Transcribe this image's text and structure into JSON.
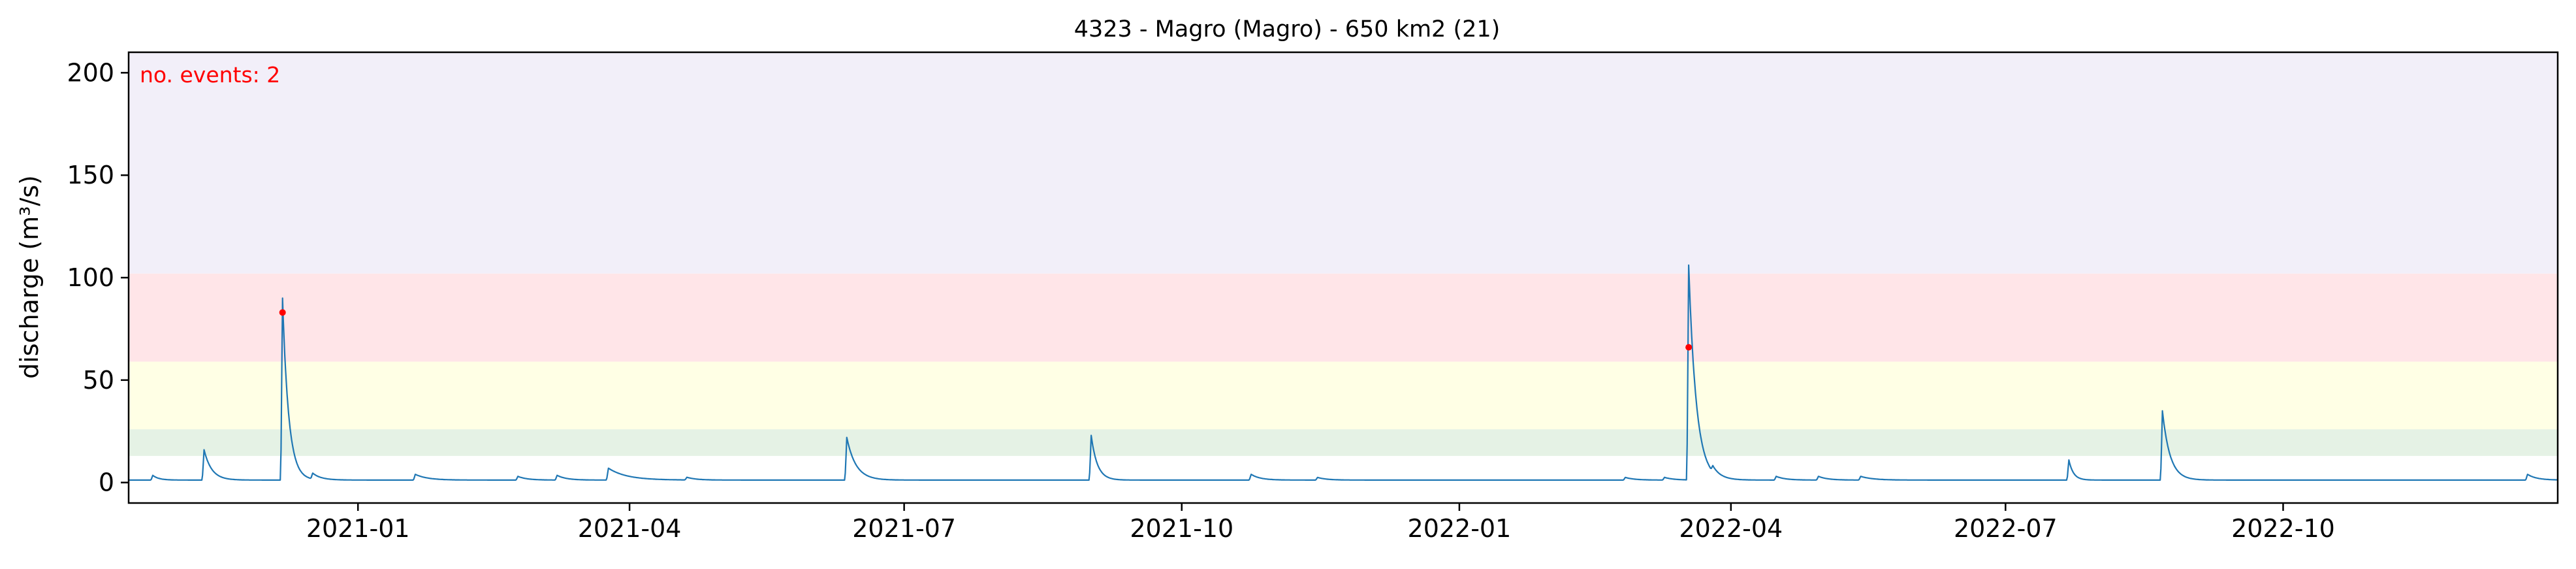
{
  "chart_data": {
    "type": "line",
    "title": "4323 - Magro (Magro) - 650 km2 (21)",
    "xlabel": "",
    "ylabel": "discharge (m³/s)",
    "annotation": "no. events: 2",
    "xlim": [
      "2020-10-17",
      "2022-12-31"
    ],
    "ylim": [
      -10,
      210
    ],
    "x_ticks": [
      "2021-01-01",
      "2021-04-01",
      "2021-07-01",
      "2021-10-01",
      "2022-01-01",
      "2022-04-01",
      "2022-07-01",
      "2022-10-01"
    ],
    "x_tick_labels": [
      "2021-01",
      "2021-04",
      "2021-07",
      "2021-10",
      "2022-01",
      "2022-04",
      "2022-07",
      "2022-10"
    ],
    "y_ticks": [
      0,
      50,
      100,
      150,
      200
    ],
    "grid": false,
    "bands": [
      {
        "from": 13,
        "to": 26,
        "color": "#e5f2e5"
      },
      {
        "from": 26,
        "to": 59,
        "color": "#ffffe5"
      },
      {
        "from": 59,
        "to": 102,
        "color": "#ffe5e8"
      },
      {
        "from": 102,
        "to": 210,
        "color": "#f2eff9"
      }
    ],
    "series": [
      {
        "color": "#1f77b4",
        "baseline": 1.2,
        "peaks": [
          {
            "date": "2020-10-25",
            "peak": 3.5,
            "decay": 2
          },
          {
            "date": "2020-11-11",
            "peak": 16,
            "decay": 2.5
          },
          {
            "date": "2020-12-07",
            "peak": 90,
            "decay": 2
          },
          {
            "date": "2020-12-17",
            "peak": 4,
            "decay": 3
          },
          {
            "date": "2021-01-20",
            "peak": 4,
            "decay": 4
          },
          {
            "date": "2021-02-23",
            "peak": 3,
            "decay": 3
          },
          {
            "date": "2021-03-08",
            "peak": 3.5,
            "decay": 3
          },
          {
            "date": "2021-03-25",
            "peak": 7,
            "decay": 6
          },
          {
            "date": "2021-04-20",
            "peak": 2.5,
            "decay": 3
          },
          {
            "date": "2021-06-12",
            "peak": 22,
            "decay": 3
          },
          {
            "date": "2021-09-01",
            "peak": 23,
            "decay": 2
          },
          {
            "date": "2021-10-24",
            "peak": 4,
            "decay": 3
          },
          {
            "date": "2021-11-15",
            "peak": 2.5,
            "decay": 3
          },
          {
            "date": "2022-02-25",
            "peak": 2.5,
            "decay": 3
          },
          {
            "date": "2022-03-10",
            "peak": 2.5,
            "decay": 3
          },
          {
            "date": "2022-03-18",
            "peak": 106,
            "decay": 2.5
          },
          {
            "date": "2022-03-26",
            "peak": 4,
            "decay": 3
          },
          {
            "date": "2022-04-16",
            "peak": 3,
            "decay": 3
          },
          {
            "date": "2022-04-30",
            "peak": 3,
            "decay": 3
          },
          {
            "date": "2022-05-14",
            "peak": 3,
            "decay": 4
          },
          {
            "date": "2022-07-22",
            "peak": 11,
            "decay": 1.5
          },
          {
            "date": "2022-08-22",
            "peak": 35,
            "decay": 2.5
          },
          {
            "date": "2022-12-21",
            "peak": 4,
            "decay": 3
          }
        ]
      }
    ],
    "events": [
      {
        "date": "2020-12-07",
        "value": 83,
        "color": "#ff0000"
      },
      {
        "date": "2022-03-18",
        "value": 66,
        "color": "#ff0000"
      }
    ]
  }
}
